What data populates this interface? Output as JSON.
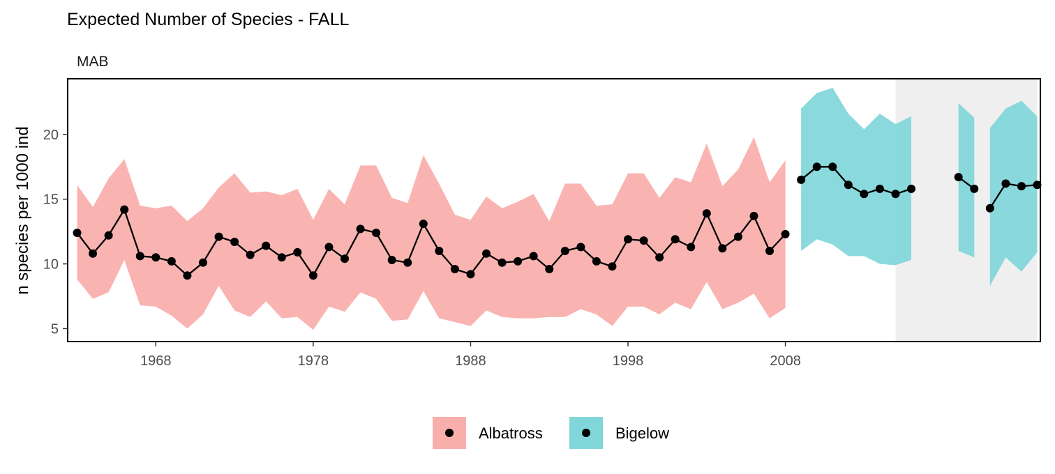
{
  "chart_data": {
    "type": "line",
    "title": "Expected Number of Species - FALL",
    "facet_label": "MAB",
    "xlabel": "",
    "ylabel": "n species per 1000 ind",
    "xlim": [
      1962.4,
      2024.2
    ],
    "ylim": [
      4.0,
      24.3
    ],
    "x_ticks": [
      1968,
      1978,
      1988,
      1998,
      2008
    ],
    "y_ticks": [
      5,
      10,
      15,
      20
    ],
    "grid": false,
    "legend_position": "bottom",
    "shaded_region": {
      "x_start": 2015,
      "x_end": 2024,
      "color": "#efefef"
    },
    "series": [
      {
        "name": "Albatross",
        "color": "#f8aeab",
        "segments": [
          {
            "x": [
              1963,
              1964,
              1965,
              1966,
              1967,
              1968,
              1969,
              1970,
              1971,
              1972,
              1973,
              1974,
              1975,
              1976,
              1977,
              1978,
              1979,
              1980,
              1981,
              1982,
              1983,
              1984,
              1985,
              1986,
              1987,
              1988,
              1989,
              1990,
              1991,
              1992,
              1993,
              1994,
              1995,
              1996,
              1997,
              1998,
              1999,
              2000,
              2001,
              2002,
              2003,
              2004,
              2005,
              2006,
              2007,
              2008
            ],
            "y": [
              12.4,
              10.8,
              12.2,
              14.2,
              10.6,
              10.5,
              10.2,
              9.1,
              10.1,
              12.1,
              11.7,
              10.7,
              11.4,
              10.5,
              10.9,
              9.1,
              11.3,
              10.4,
              12.7,
              12.4,
              10.3,
              10.1,
              13.1,
              11.0,
              9.6,
              9.2,
              10.8,
              10.1,
              10.2,
              10.6,
              9.6,
              11.0,
              11.3,
              10.2,
              9.8,
              11.9,
              11.8,
              10.5,
              11.9,
              11.3,
              13.9,
              11.2,
              12.1,
              13.7,
              11.0,
              12.3
            ],
            "upper": [
              16.1,
              14.4,
              16.6,
              18.1,
              14.5,
              14.3,
              14.5,
              13.3,
              14.3,
              15.9,
              17.0,
              15.5,
              15.6,
              15.3,
              15.8,
              13.4,
              15.8,
              14.6,
              17.6,
              17.6,
              15.1,
              14.7,
              18.4,
              16.2,
              13.8,
              13.4,
              15.2,
              14.3,
              14.8,
              15.4,
              13.3,
              16.2,
              16.2,
              14.5,
              14.6,
              17.0,
              17.0,
              15.1,
              16.7,
              16.3,
              19.3,
              16.0,
              17.3,
              19.8,
              16.3,
              18.0
            ],
            "lower": [
              8.8,
              7.3,
              7.8,
              10.3,
              6.8,
              6.7,
              6.0,
              5.0,
              6.1,
              8.3,
              6.4,
              5.9,
              7.1,
              5.8,
              5.9,
              4.9,
              6.7,
              6.3,
              7.8,
              7.3,
              5.6,
              5.7,
              7.9,
              5.8,
              5.5,
              5.2,
              6.4,
              5.9,
              5.8,
              5.8,
              5.9,
              5.9,
              6.5,
              6.1,
              5.2,
              6.7,
              6.7,
              6.1,
              7.0,
              6.5,
              8.6,
              6.5,
              7.0,
              7.7,
              5.8,
              6.6
            ]
          }
        ]
      },
      {
        "name": "Bigelow",
        "color": "#80d6d9",
        "segments": [
          {
            "x": [
              2009,
              2010,
              2011,
              2012,
              2013,
              2014,
              2015,
              2016
            ],
            "y": [
              16.5,
              17.5,
              17.5,
              16.1,
              15.4,
              15.8,
              15.4,
              15.8
            ],
            "upper": [
              22.0,
              23.2,
              23.6,
              21.6,
              20.4,
              21.6,
              20.8,
              21.4
            ],
            "lower": [
              11.0,
              11.9,
              11.5,
              10.6,
              10.6,
              10.0,
              9.9,
              10.3
            ]
          },
          {
            "x": [
              2019,
              2020
            ],
            "y": [
              16.7,
              15.8
            ],
            "upper": [
              22.4,
              21.3
            ],
            "lower": [
              11.0,
              10.5
            ]
          },
          {
            "x": [
              2021,
              2022,
              2023,
              2024
            ],
            "y": [
              14.3,
              16.2,
              16.0,
              16.1
            ],
            "upper": [
              20.5,
              22.0,
              22.6,
              21.4
            ],
            "lower": [
              8.3,
              10.5,
              9.4,
              10.9
            ]
          }
        ]
      }
    ],
    "legend": [
      {
        "label": "Albatross",
        "color": "#f8aeab"
      },
      {
        "label": "Bigelow",
        "color": "#80d6d9"
      }
    ]
  }
}
